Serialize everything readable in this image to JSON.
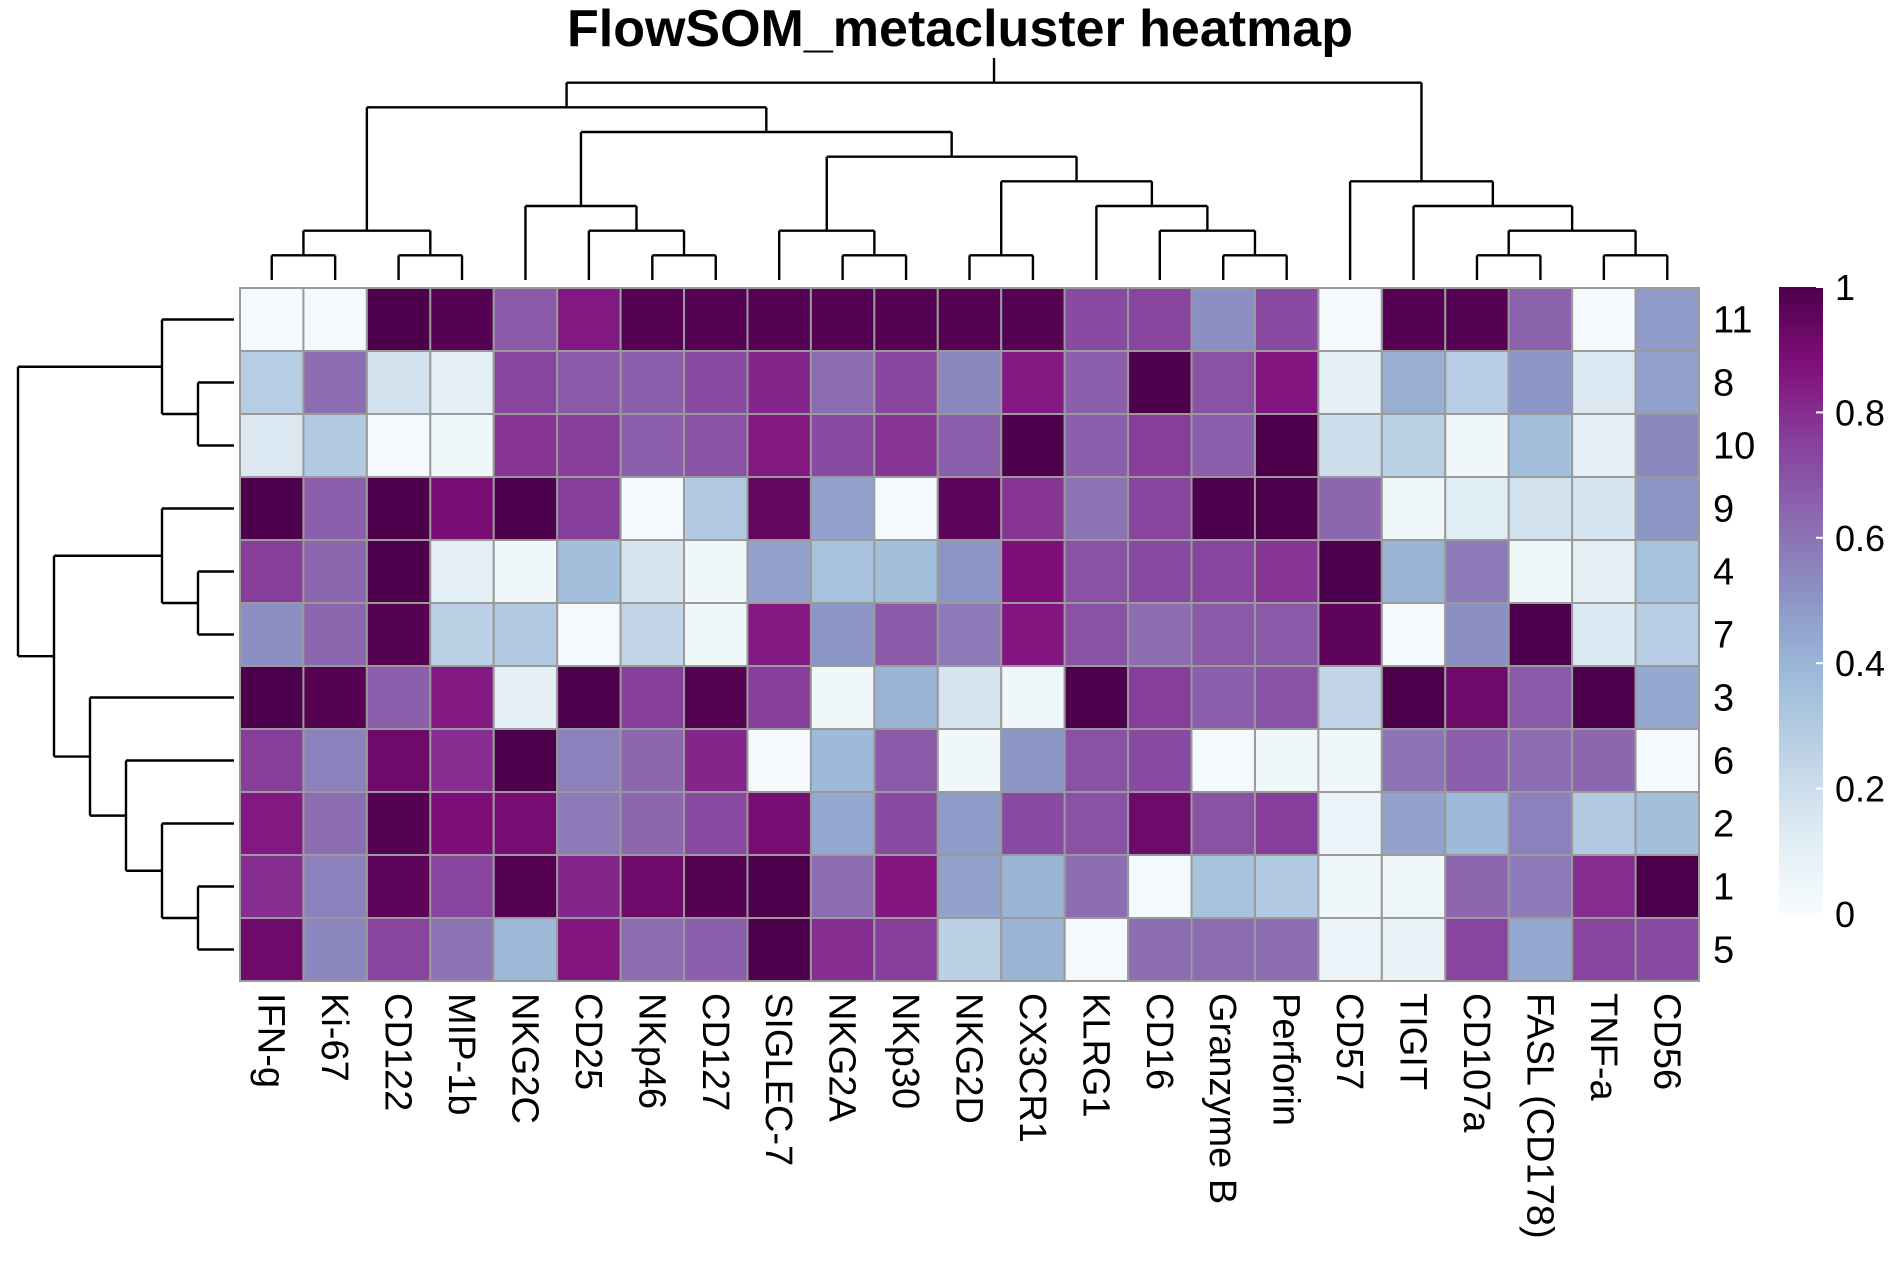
{
  "chart_data": {
    "type": "heatmap",
    "title": "FlowSOM_metacluster heatmap",
    "rows": [
      "11",
      "8",
      "10",
      "9",
      "4",
      "7",
      "3",
      "6",
      "2",
      "1",
      "5"
    ],
    "columns": [
      "IFN-g",
      "Ki-67",
      "CD122",
      "MIP-1b",
      "NKG2C",
      "CD25",
      "NKp46",
      "CD127",
      "SIGLEC-7",
      "NKG2A",
      "NKp30",
      "NKG2D",
      "CX3CR1",
      "KLRG1",
      "CD16",
      "Granzyme B",
      "Perforin",
      "CD57",
      "TIGIT",
      "CD107a",
      "FASL (CD178)",
      "TNF-a",
      "CD56"
    ],
    "values": [
      [
        0.02,
        0.02,
        1.0,
        0.98,
        0.68,
        0.85,
        0.98,
        0.98,
        0.98,
        0.98,
        0.98,
        0.98,
        0.98,
        0.72,
        0.74,
        0.52,
        0.72,
        0.02,
        0.98,
        0.98,
        0.65,
        0.02,
        0.48
      ],
      [
        0.28,
        0.62,
        0.18,
        0.1,
        0.74,
        0.68,
        0.66,
        0.72,
        0.82,
        0.62,
        0.74,
        0.54,
        0.85,
        0.66,
        1.0,
        0.7,
        0.86,
        0.1,
        0.42,
        0.28,
        0.5,
        0.14,
        0.46
      ],
      [
        0.14,
        0.3,
        0.02,
        0.04,
        0.78,
        0.76,
        0.66,
        0.7,
        0.85,
        0.72,
        0.78,
        0.66,
        1.0,
        0.66,
        0.76,
        0.66,
        1.0,
        0.2,
        0.26,
        0.04,
        0.36,
        0.1,
        0.54
      ],
      [
        1.0,
        0.66,
        1.0,
        0.9,
        1.0,
        0.76,
        0.02,
        0.3,
        0.95,
        0.46,
        0.02,
        0.96,
        0.78,
        0.6,
        0.74,
        1.0,
        1.0,
        0.64,
        0.04,
        0.12,
        0.18,
        0.16,
        0.5
      ],
      [
        0.76,
        0.64,
        1.0,
        0.1,
        0.04,
        0.36,
        0.16,
        0.04,
        0.46,
        0.34,
        0.36,
        0.5,
        0.88,
        0.7,
        0.72,
        0.74,
        0.78,
        1.0,
        0.4,
        0.58,
        0.04,
        0.1,
        0.34
      ],
      [
        0.52,
        0.64,
        0.98,
        0.26,
        0.3,
        0.02,
        0.24,
        0.04,
        0.85,
        0.5,
        0.68,
        0.58,
        0.86,
        0.7,
        0.62,
        0.68,
        0.68,
        0.96,
        0.02,
        0.52,
        1.0,
        0.14,
        0.28
      ],
      [
        1.0,
        0.98,
        0.66,
        0.85,
        0.1,
        1.0,
        0.76,
        0.98,
        0.76,
        0.04,
        0.4,
        0.16,
        0.04,
        1.0,
        0.76,
        0.66,
        0.7,
        0.24,
        1.0,
        0.92,
        0.68,
        1.0,
        0.44
      ],
      [
        0.76,
        0.56,
        0.92,
        0.8,
        1.0,
        0.56,
        0.64,
        0.82,
        0.02,
        0.38,
        0.68,
        0.04,
        0.5,
        0.7,
        0.72,
        0.02,
        0.04,
        0.04,
        0.6,
        0.66,
        0.62,
        0.64,
        0.02
      ],
      [
        0.85,
        0.62,
        0.98,
        0.88,
        0.9,
        0.58,
        0.64,
        0.72,
        0.9,
        0.44,
        0.72,
        0.48,
        0.72,
        0.7,
        0.92,
        0.7,
        0.76,
        0.06,
        0.46,
        0.38,
        0.56,
        0.3,
        0.36
      ],
      [
        0.8,
        0.56,
        0.96,
        0.74,
        0.98,
        0.82,
        0.92,
        0.98,
        1.0,
        0.62,
        0.86,
        0.46,
        0.4,
        0.62,
        0.02,
        0.34,
        0.3,
        0.04,
        0.04,
        0.64,
        0.58,
        0.8,
        1.0
      ],
      [
        0.92,
        0.54,
        0.74,
        0.6,
        0.38,
        0.86,
        0.62,
        0.66,
        1.0,
        0.8,
        0.76,
        0.26,
        0.4,
        0.02,
        0.62,
        0.62,
        0.62,
        0.06,
        0.08,
        0.74,
        0.44,
        0.74,
        0.72
      ]
    ],
    "legend": {
      "range": [
        0,
        1
      ],
      "ticks": [
        "0",
        "0.2",
        "0.4",
        "0.6",
        "0.8",
        "1"
      ],
      "placement": "right"
    },
    "color_scale": [
      "#f7fcfd",
      "#e0ecf4",
      "#bfd3e6",
      "#9ebcda",
      "#8c96c6",
      "#8c6bb1",
      "#88419d",
      "#810f7c",
      "#4d004b"
    ],
    "column_dendrogram": "(((((IFN-g,Ki-67),(CD122,MIP-1b)),((NKG2C,(CD25,(NKp46,CD127))),((SIGLEC-7,(NKG2A,NKp30)),((NKG2D,CX3CR1),(KLRG1,(CD16,(Granzyme B,Perforin))))))),(CD57,(TIGIT,((CD107a,FASL (CD178)),(TNF-a,CD56))))))",
    "row_dendrogram": "((11,(8,10)),((9,(4,7)),(3,(6,(2,(1,5))))))"
  }
}
